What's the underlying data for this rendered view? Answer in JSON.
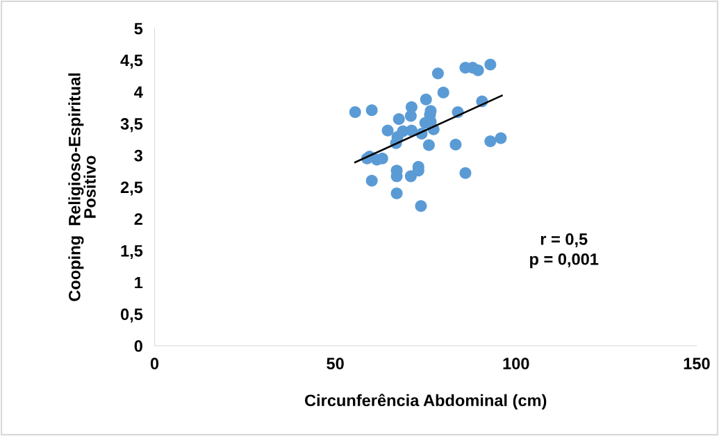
{
  "chart_data": {
    "type": "scatter",
    "xlabel": "Circunferência Abdominal (cm)",
    "ylabel": "Cooping  Religioso-Espiritual\nPositivo",
    "xlim": [
      0,
      150
    ],
    "xticks": [
      0,
      50,
      100,
      150
    ],
    "ylim": [
      0,
      5
    ],
    "yticks": [
      0,
      {
        "value": 0.5,
        "label": "0,5"
      },
      1,
      {
        "value": 1.5,
        "label": "1,5"
      },
      2,
      {
        "value": 2.5,
        "label": "2,5"
      },
      3,
      {
        "value": 3.5,
        "label": "3,5"
      },
      4,
      {
        "value": 4.5,
        "label": "4,5"
      },
      5
    ],
    "grid": false,
    "legend": false,
    "series": [
      {
        "color": "#5b9bd5",
        "marker": "circle",
        "x": [
          55.5,
          60.1,
          78.4,
          86.0,
          88.0,
          89.5,
          92.9,
          79.9,
          75.1,
          71.1,
          76.4,
          76.2,
          70.9,
          67.6,
          74.9,
          76.4,
          83.9,
          90.6,
          64.5,
          68.7,
          71.1,
          77.2,
          73.9,
          67.2,
          66.8,
          75.9,
          83.3,
          92.9,
          95.8,
          58.8,
          59.5,
          61.5,
          63.0,
          67.0,
          67.0,
          73.0,
          73.0,
          70.9,
          86.0,
          60.1,
          67.0,
          73.7
        ],
        "values": [
          3.68,
          3.71,
          4.29,
          4.38,
          4.38,
          4.34,
          4.43,
          3.99,
          3.88,
          3.76,
          3.7,
          3.64,
          3.62,
          3.57,
          3.51,
          3.53,
          3.68,
          3.85,
          3.39,
          3.38,
          3.39,
          3.41,
          3.34,
          3.29,
          3.19,
          3.16,
          3.17,
          3.22,
          3.27,
          2.95,
          2.98,
          2.93,
          2.95,
          2.76,
          2.67,
          2.82,
          2.76,
          2.67,
          2.72,
          2.6,
          2.4,
          2.2
        ]
      },
      {
        "type": "line",
        "color": "#000000",
        "marker": "none",
        "line_style": "solid",
        "x": [
          55.5,
          96.1
        ],
        "values": [
          2.89,
          3.94
        ]
      }
    ],
    "annotations": [
      "r = 0,5\np = 0,001"
    ]
  }
}
